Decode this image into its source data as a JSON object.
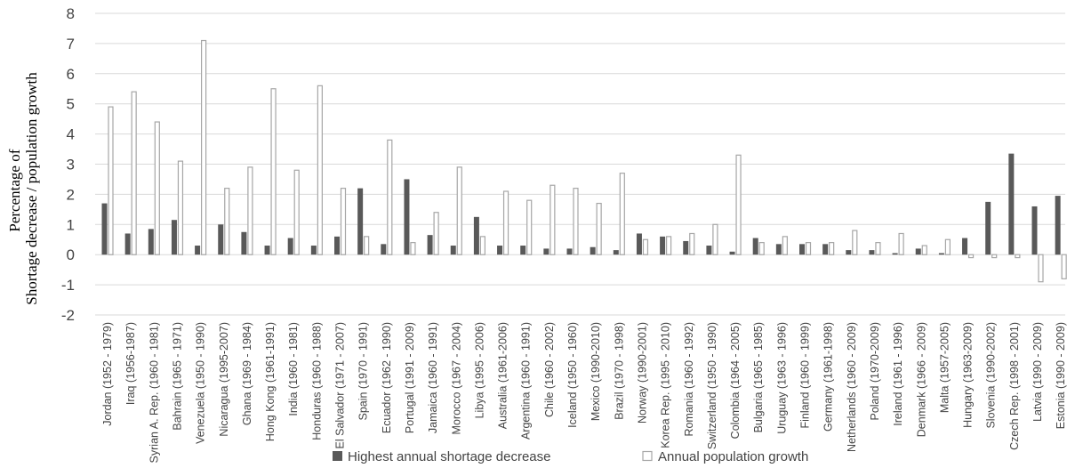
{
  "chart_data": {
    "type": "bar",
    "ylabel_lines": [
      "Percentage of",
      "Shortage decrease / population growth"
    ],
    "ylim": [
      -2,
      8
    ],
    "yticks": [
      -2,
      -1,
      0,
      1,
      2,
      3,
      4,
      5,
      6,
      7,
      8
    ],
    "grid": true,
    "legend_position": "bottom",
    "categories": [
      "Jordan (1952 - 1979)",
      "Iraq (1956-1987)",
      "Syrian A. Rep. (1960 - 1981)",
      "Bahrain (1965 - 1971)",
      "Venezuela (1950 - 1990)",
      "Nicaragua (1995-2007)",
      "Ghana (1969 - 1984)",
      "Hong Kong (1961-1991)",
      "India (1960 - 1981)",
      "Honduras (1960 - 1988)",
      "El Salvador (1971 - 2007)",
      "Spain (1970 - 1991)",
      "Ecuador (1962 - 1990)",
      "Portugal (1991 - 2009)",
      "Jamaica (1960 - 1991)",
      "Morocco (1967 - 2004)",
      "Libya (1995 - 2006)",
      "Australia (1961-2006)",
      "Argentina (1960 - 1991)",
      "Chile (1960 - 2002)",
      "Iceland (1950 - 1960)",
      "Mexico (1990-2010)",
      "Brazil (1970 - 1998)",
      "Norway (1990-2001)",
      "Korea Rep. (1995 - 2010)",
      "Romania (1960 - 1992)",
      "Switzerland (1950 - 1990)",
      "Colombia (1964 - 2005)",
      "Bulgaria (1965 - 1985)",
      "Uruguay (1963 - 1996)",
      "Finland (1960 - 1999)",
      "Germany (1961-1998)",
      "Netherlands (1960 - 2009)",
      "Poland (1970-2009)",
      "Ireland (1961 - 1996)",
      "Denmark (1966 - 2009)",
      "Malta (1957-2005)",
      "Hungary (1963-2009)",
      "Slovenia (1990-2002)",
      "Czech Rep. (1998 - 2001)",
      "Latvia (1990 - 2009)",
      "Estonia (1990 - 2009)"
    ],
    "series": [
      {
        "name": "Highest annual shortage decrease",
        "color": "#595959",
        "style": "filled",
        "values": [
          1.7,
          0.7,
          0.85,
          1.15,
          0.3,
          1.0,
          0.75,
          0.3,
          0.55,
          0.3,
          0.6,
          2.2,
          0.35,
          2.5,
          0.65,
          0.3,
          1.25,
          0.3,
          0.3,
          0.2,
          0.2,
          0.25,
          0.15,
          0.7,
          0.6,
          0.45,
          0.3,
          0.1,
          0.55,
          0.35,
          0.35,
          0.35,
          0.15,
          0.15,
          0.05,
          0.2,
          0.05,
          0.55,
          1.75,
          3.35,
          1.6,
          1.95
        ]
      },
      {
        "name": "Annual population growth",
        "color": "#a6a6a6",
        "style": "outline",
        "values": [
          4.9,
          5.4,
          4.4,
          3.1,
          7.1,
          2.2,
          2.9,
          5.5,
          2.8,
          5.6,
          2.2,
          0.6,
          3.8,
          0.4,
          1.4,
          2.9,
          0.6,
          2.1,
          1.8,
          2.3,
          2.2,
          1.7,
          2.7,
          0.5,
          0.6,
          0.7,
          1.0,
          3.3,
          0.4,
          0.6,
          0.4,
          0.4,
          0.8,
          0.4,
          0.7,
          0.3,
          0.5,
          -0.1,
          -0.1,
          -0.1,
          -0.9,
          -0.8
        ]
      }
    ]
  }
}
